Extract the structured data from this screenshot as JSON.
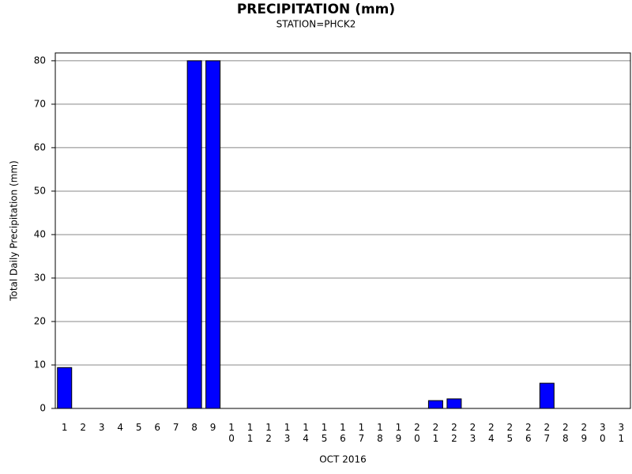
{
  "chart_data": {
    "type": "bar",
    "title": "PRECIPITATION (mm)",
    "subtitle": "STATION=PHCK2",
    "x_label": "OCT 2016",
    "y_label": "Total Daily Precipitation (mm)",
    "categories": [
      "1",
      "2",
      "3",
      "4",
      "5",
      "6",
      "7",
      "8",
      "9",
      "10",
      "11",
      "12",
      "13",
      "14",
      "15",
      "16",
      "17",
      "18",
      "19",
      "20",
      "21",
      "22",
      "23",
      "24",
      "25",
      "26",
      "27",
      "28",
      "29",
      "30",
      "31"
    ],
    "values": [
      9.4,
      0,
      0,
      0,
      0,
      0,
      0,
      80,
      80,
      0,
      0,
      0,
      0,
      0,
      0,
      0,
      0,
      0,
      0,
      0,
      1.8,
      2.2,
      0,
      0,
      0,
      0,
      5.8,
      0,
      0,
      0,
      0
    ],
    "color": "#0000ff",
    "ylim": [
      0,
      81.8
    ],
    "yticks": [
      0,
      10,
      20,
      30,
      40,
      50,
      60,
      70,
      80
    ],
    "grid": true
  }
}
